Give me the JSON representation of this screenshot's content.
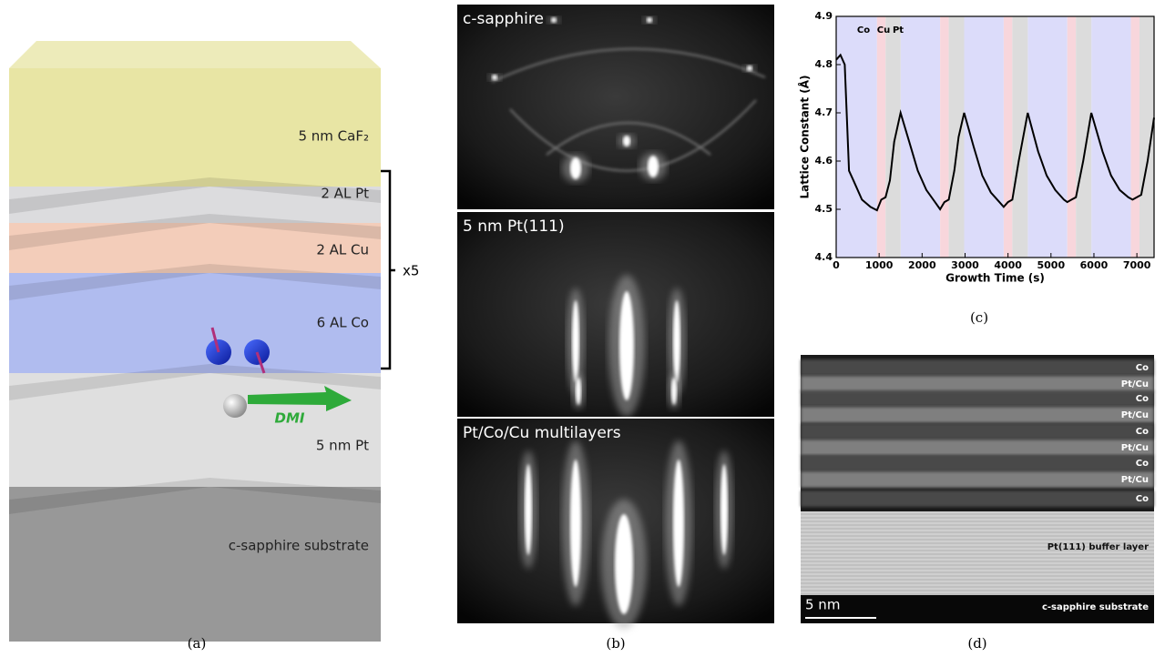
{
  "panel_a": {
    "caption": "(a)",
    "layers": [
      {
        "label": "5 nm CaF₂",
        "color": "#e6e39c"
      },
      {
        "label": "2 AL Pt",
        "color": "#d9d9db"
      },
      {
        "label": "2 AL Cu",
        "color": "#f2c9b4"
      },
      {
        "label": "6 AL Co",
        "color": "#a9b6ee"
      },
      {
        "label": "5 nm Pt",
        "color": "#dcdcdc"
      },
      {
        "label": "c-sapphire substrate",
        "color": "#8f8f8f"
      }
    ],
    "repeat": "x5",
    "annotation": "DMI"
  },
  "panel_b": {
    "caption": "(b)",
    "images": [
      {
        "label": "c-sapphire"
      },
      {
        "label": "5 nm Pt(111)"
      },
      {
        "label": "Pt/Co/Cu multilayers"
      }
    ]
  },
  "chart_data": {
    "type": "line",
    "caption": "(c)",
    "x_label": "Growth Time (s)",
    "y_label": "Lattice Constant (Å)",
    "xlim": [
      0,
      7400
    ],
    "ylim": [
      4.4,
      4.9
    ],
    "xticks": [
      0,
      1000,
      2000,
      3000,
      4000,
      5000,
      6000,
      7000
    ],
    "yticks": [
      4.4,
      4.5,
      4.6,
      4.7,
      4.8,
      4.9
    ],
    "color": "#000000",
    "layers": [
      {
        "name": "Co",
        "color": "#dcdcfa",
        "spans": [
          [
            0,
            950
          ],
          [
            1500,
            2420
          ],
          [
            2980,
            3900
          ],
          [
            4460,
            5380
          ],
          [
            5940,
            6860
          ]
        ]
      },
      {
        "name": "Cu",
        "color": "#f8d6dc",
        "spans": [
          [
            950,
            1150
          ],
          [
            2420,
            2620
          ],
          [
            3900,
            4100
          ],
          [
            5380,
            5580
          ],
          [
            6860,
            7060
          ]
        ]
      },
      {
        "name": "Pt",
        "color": "#dcdcdc",
        "spans": [
          [
            1150,
            1500
          ],
          [
            2620,
            2980
          ],
          [
            4100,
            4460
          ],
          [
            5580,
            5940
          ],
          [
            7060,
            7400
          ]
        ]
      }
    ],
    "x": [
      0,
      100,
      200,
      300,
      400,
      600,
      800,
      950,
      1050,
      1150,
      1250,
      1350,
      1500,
      1700,
      1900,
      2100,
      2300,
      2420,
      2520,
      2620,
      2750,
      2850,
      2980,
      3200,
      3400,
      3600,
      3800,
      3900,
      4000,
      4100,
      4250,
      4460,
      4700,
      4900,
      5100,
      5300,
      5380,
      5480,
      5580,
      5750,
      5940,
      6200,
      6400,
      6600,
      6800,
      6900,
      7000,
      7100,
      7250,
      7400
    ],
    "values": [
      4.81,
      4.82,
      4.8,
      4.58,
      4.56,
      4.52,
      4.505,
      4.498,
      4.52,
      4.525,
      4.56,
      4.64,
      4.7,
      4.64,
      4.58,
      4.54,
      4.515,
      4.5,
      4.515,
      4.52,
      4.58,
      4.65,
      4.7,
      4.63,
      4.57,
      4.535,
      4.515,
      4.505,
      4.515,
      4.52,
      4.6,
      4.7,
      4.62,
      4.57,
      4.54,
      4.52,
      4.515,
      4.52,
      4.525,
      4.6,
      4.7,
      4.62,
      4.57,
      4.54,
      4.525,
      4.52,
      4.525,
      4.53,
      4.6,
      4.69
    ]
  },
  "panel_d": {
    "caption": "(d)",
    "layer_labels": [
      "Co",
      "Pt/Cu",
      "Co",
      "Pt/Cu",
      "Co",
      "Pt/Cu",
      "Co",
      "Pt/Cu",
      "Co"
    ],
    "buffer_label": "Pt(111) buffer layer",
    "substrate_label": "c-sapphire substrate",
    "scale_bar": "5 nm"
  }
}
